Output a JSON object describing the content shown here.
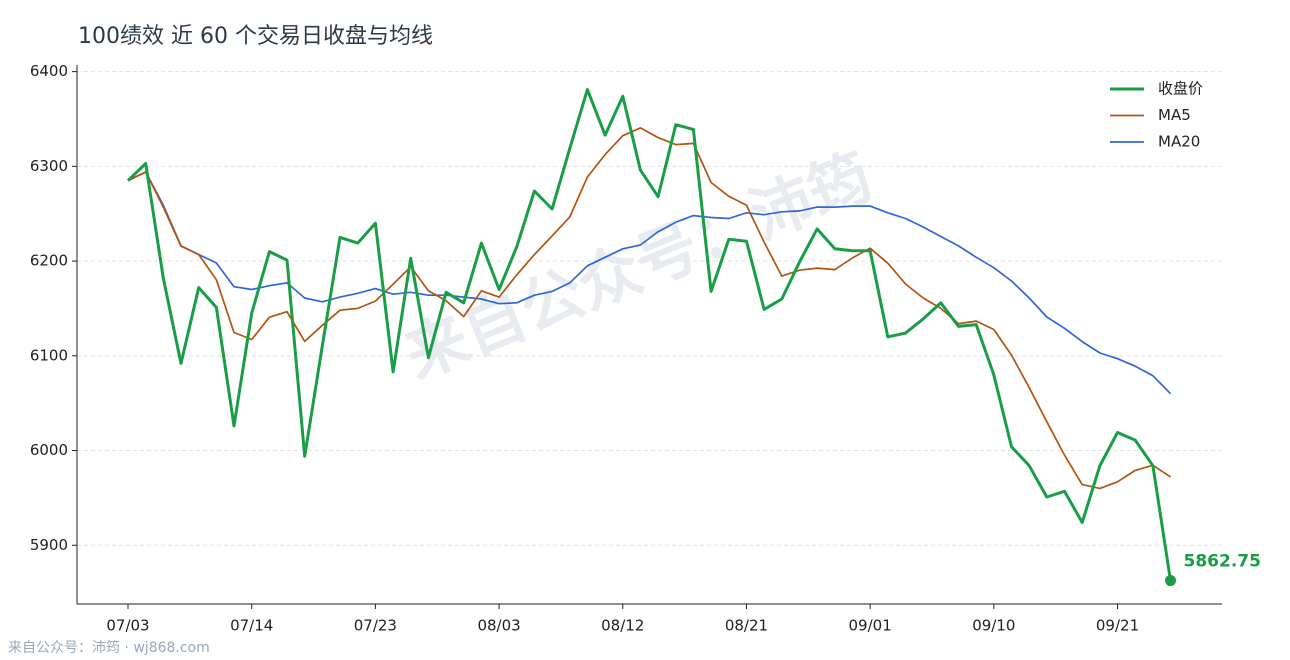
{
  "chart_data": {
    "type": "line",
    "title": "100绩效 近 60 个交易日收盘与均线",
    "watermark": "来自公众号：沛筠",
    "footer": "来自公众号：沛筠 · wj868.com",
    "categories": [
      "07/03",
      null,
      null,
      null,
      null,
      null,
      null,
      "07/14",
      null,
      null,
      null,
      null,
      null,
      null,
      "07/23",
      null,
      null,
      null,
      null,
      null,
      null,
      "08/03",
      null,
      null,
      null,
      null,
      null,
      null,
      "08/12",
      null,
      null,
      null,
      null,
      null,
      null,
      "08/21",
      null,
      null,
      null,
      null,
      null,
      null,
      "09/01",
      null,
      null,
      null,
      null,
      null,
      null,
      "09/10",
      null,
      null,
      null,
      null,
      null,
      null,
      "09/21",
      null,
      null,
      null
    ],
    "series": [
      {
        "name": "收盘价",
        "color": "#1a9e45",
        "width": 3,
        "values": [
          6285,
          6303,
          6182,
          6092,
          6172,
          6151,
          6026,
          6145,
          6210,
          6201,
          5994,
          6111,
          6225,
          6219,
          6240,
          6083,
          6203,
          6098,
          6167,
          6156,
          6219,
          6170,
          6215,
          6274,
          6255,
          6319,
          6381,
          6333,
          6374,
          6296,
          6268,
          6344,
          6339,
          6168,
          6223,
          6221,
          6149,
          6160,
          6199,
          6234,
          6213,
          6211,
          6211,
          6120,
          6124,
          6139,
          6156,
          6131,
          6133,
          6080,
          6004,
          5984,
          5951,
          5957,
          5924,
          5984,
          6019,
          6011,
          5984,
          5862.75
        ]
      },
      {
        "name": "MA5",
        "color": "#b5530f",
        "width": 1.7,
        "values": [
          6285,
          6294,
          6257,
          6215.8,
          6207,
          6180.2,
          6124.6,
          6117.2,
          6140.8,
          6146.6,
          6115.2,
          6132.2,
          6148.2,
          6150,
          6157.8,
          6175.6,
          6194,
          6168.6,
          6158.2,
          6141.4,
          6168.6,
          6162,
          6185.4,
          6206.8,
          6226.6,
          6246.6,
          6288.8,
          6312.4,
          6332.4,
          6340.6,
          6330.4,
          6323,
          6324.2,
          6283,
          6268.4,
          6259,
          6220,
          6184.2,
          6190.4,
          6192.6,
          6191,
          6203.4,
          6213.6,
          6197.8,
          6175.8,
          6161,
          6150,
          6134,
          6136.6,
          6127.8,
          6100.8,
          6066.4,
          6030.4,
          5995.2,
          5964,
          5960,
          5967,
          5979,
          5984.4,
          5972.15
        ]
      },
      {
        "name": "MA20",
        "color": "#2f68d6",
        "width": 1.7,
        "values": [
          6285,
          6294,
          6259,
          6216,
          6207,
          6198,
          6173,
          6170,
          6174,
          6177,
          6161,
          6157,
          6162,
          6166,
          6171,
          6165,
          6167,
          6164,
          6164,
          6162,
          6160,
          6155,
          6156,
          6164,
          6168,
          6177,
          6195,
          6204,
          6213,
          6217,
          6231,
          6241,
          6248,
          6246,
          6245,
          6251,
          6249,
          6252,
          6253,
          6257,
          6257,
          6258,
          6258,
          6251,
          6245,
          6236,
          6226,
          6216,
          6204,
          6193,
          6179,
          6161,
          6141,
          6129,
          6115,
          6103,
          6097,
          6089,
          6079,
          6060
        ]
      }
    ],
    "ylim": [
      5838,
      6407
    ],
    "yticks": [
      5900,
      6000,
      6100,
      6200,
      6300,
      6400
    ],
    "grid": true,
    "legend": "upper-right"
  }
}
